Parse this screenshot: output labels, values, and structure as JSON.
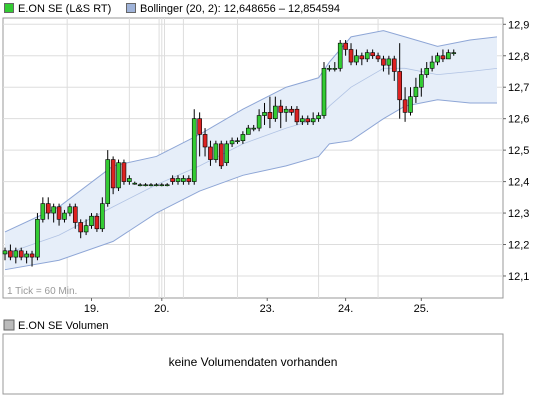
{
  "legend": {
    "instrument": "E.ON SE (L&S RT)",
    "instrument_color": "#33cc33",
    "bollinger": "Bollinger (20, 2): 12,648656 – 12,854594",
    "bollinger_color": "#9fb3d9"
  },
  "tick_note": "1 Tick = 60 Min.",
  "volume_panel": {
    "title": "E.ON SE Volumen",
    "title_color": "#bbbbbb",
    "message": "keine Volumendaten vorhanden"
  },
  "colors": {
    "up": "#33cc33",
    "down": "#dd2222",
    "band_fill": "#e6eef9",
    "band_line": "#8ea6d6",
    "grid": "#dddddd",
    "frame": "#999999"
  },
  "chart_data": {
    "type": "candlestick",
    "ylim": [
      12.03,
      12.92
    ],
    "yticks": [
      "12,1",
      "12,2",
      "12,3",
      "12,4",
      "12,5",
      "12,6",
      "12,7",
      "12,8",
      "12,9"
    ],
    "ytick_values": [
      12.1,
      12.2,
      12.3,
      12.4,
      12.5,
      12.6,
      12.7,
      12.8,
      12.9
    ],
    "xticks": [
      "19.",
      "20.",
      "23.",
      "24.",
      "25."
    ],
    "xtick_positions": [
      16,
      29,
      48.5,
      63,
      77
    ],
    "x_range": [
      0,
      91
    ],
    "day_separators": [
      11.5,
      23,
      28.5,
      29,
      29.5,
      33,
      43,
      58,
      69
    ],
    "candles": [
      [
        12.17,
        12.18,
        12.19,
        12.15
      ],
      [
        12.18,
        12.16,
        12.2,
        12.15
      ],
      [
        12.16,
        12.18,
        12.19,
        12.14
      ],
      [
        12.18,
        12.16,
        12.19,
        12.15
      ],
      [
        12.16,
        12.17,
        12.18,
        12.14
      ],
      [
        12.17,
        12.16,
        12.18,
        12.13
      ],
      [
        12.16,
        12.28,
        12.3,
        12.15
      ],
      [
        12.28,
        12.33,
        12.35,
        12.27
      ],
      [
        12.33,
        12.3,
        12.35,
        12.28
      ],
      [
        12.3,
        12.32,
        12.33,
        12.27
      ],
      [
        12.32,
        12.28,
        12.33,
        12.26
      ],
      [
        12.28,
        12.3,
        12.31,
        12.27
      ],
      [
        12.3,
        12.32,
        12.33,
        12.29
      ],
      [
        12.32,
        12.27,
        12.33,
        12.25
      ],
      [
        12.27,
        12.24,
        12.28,
        12.22
      ],
      [
        12.24,
        12.26,
        12.28,
        12.23
      ],
      [
        12.26,
        12.29,
        12.3,
        12.25
      ],
      [
        12.29,
        12.25,
        12.3,
        12.24
      ],
      [
        12.25,
        12.33,
        12.35,
        12.24
      ],
      [
        12.33,
        12.47,
        12.5,
        12.32
      ],
      [
        12.47,
        12.38,
        12.48,
        12.36
      ],
      [
        12.38,
        12.46,
        12.47,
        12.37
      ],
      [
        12.46,
        12.4,
        12.47,
        12.39
      ],
      [
        12.4,
        12.41,
        12.42,
        12.39
      ],
      [
        12.395,
        12.395,
        12.4,
        12.39
      ],
      [
        12.39,
        12.39,
        12.395,
        12.385
      ],
      [
        12.39,
        12.39,
        12.395,
        12.385
      ],
      [
        12.39,
        12.39,
        12.395,
        12.385
      ],
      [
        12.39,
        12.39,
        12.395,
        12.385
      ],
      [
        12.39,
        12.39,
        12.395,
        12.385
      ],
      [
        12.39,
        12.39,
        12.395,
        12.385
      ],
      [
        12.41,
        12.4,
        12.42,
        12.39
      ],
      [
        12.4,
        12.41,
        12.42,
        12.39
      ],
      [
        12.4,
        12.41,
        12.42,
        12.39
      ],
      [
        12.41,
        12.4,
        12.42,
        12.39
      ],
      [
        12.4,
        12.6,
        12.63,
        12.39
      ],
      [
        12.6,
        12.55,
        12.62,
        12.48
      ],
      [
        12.55,
        12.51,
        12.57,
        12.48
      ],
      [
        12.51,
        12.47,
        12.53,
        12.45
      ],
      [
        12.47,
        12.52,
        12.53,
        12.46
      ],
      [
        12.52,
        12.45,
        12.53,
        12.44
      ],
      [
        12.46,
        12.52,
        12.53,
        12.45
      ],
      [
        12.52,
        12.53,
        12.54,
        12.51
      ],
      [
        12.53,
        12.53,
        12.54,
        12.52
      ],
      [
        12.53,
        12.55,
        12.56,
        12.52
      ],
      [
        12.55,
        12.57,
        12.58,
        12.55
      ],
      [
        12.57,
        12.57,
        12.58,
        12.56
      ],
      [
        12.57,
        12.61,
        12.63,
        12.56
      ],
      [
        12.61,
        12.62,
        12.65,
        12.58
      ],
      [
        12.62,
        12.6,
        12.67,
        12.57
      ],
      [
        12.6,
        12.64,
        12.67,
        12.59
      ],
      [
        12.64,
        12.62,
        12.66,
        12.57
      ],
      [
        12.62,
        12.63,
        12.64,
        12.59
      ],
      [
        12.63,
        12.62,
        12.64,
        12.61
      ],
      [
        12.63,
        12.59,
        12.64,
        12.58
      ],
      [
        12.59,
        12.6,
        12.61,
        12.58
      ],
      [
        12.6,
        12.59,
        12.61,
        12.58
      ],
      [
        12.59,
        12.6,
        12.62,
        12.58
      ],
      [
        12.6,
        12.61,
        12.62,
        12.59
      ],
      [
        12.61,
        12.76,
        12.78,
        12.6
      ],
      [
        12.76,
        12.76,
        12.77,
        12.75
      ],
      [
        12.76,
        12.76,
        12.78,
        12.75
      ],
      [
        12.76,
        12.84,
        12.85,
        12.75
      ],
      [
        12.84,
        12.82,
        12.85,
        12.8
      ],
      [
        12.82,
        12.78,
        12.84,
        12.77
      ],
      [
        12.78,
        12.8,
        12.82,
        12.77
      ],
      [
        12.8,
        12.79,
        12.81,
        12.77
      ],
      [
        12.79,
        12.81,
        12.82,
        12.78
      ],
      [
        12.81,
        12.8,
        12.82,
        12.79
      ],
      [
        12.8,
        12.79,
        12.81,
        12.78
      ],
      [
        12.79,
        12.77,
        12.8,
        12.75
      ],
      [
        12.77,
        12.79,
        12.8,
        12.74
      ],
      [
        12.79,
        12.75,
        12.8,
        12.72
      ],
      [
        12.75,
        12.66,
        12.84,
        12.6
      ],
      [
        12.66,
        12.62,
        12.7,
        12.59
      ],
      [
        12.62,
        12.67,
        12.7,
        12.61
      ],
      [
        12.67,
        12.7,
        12.73,
        12.65
      ],
      [
        12.7,
        12.74,
        12.76,
        12.67
      ],
      [
        12.74,
        12.76,
        12.78,
        12.73
      ],
      [
        12.76,
        12.78,
        12.8,
        12.75
      ],
      [
        12.78,
        12.8,
        12.81,
        12.77
      ],
      [
        12.8,
        12.79,
        12.82,
        12.78
      ],
      [
        12.79,
        12.81,
        12.82,
        12.79
      ],
      [
        12.81,
        12.81,
        12.82,
        12.8
      ]
    ],
    "bollinger": {
      "x": [
        0,
        10,
        20,
        28,
        36,
        44,
        52,
        58,
        60,
        64,
        70,
        74,
        80,
        86,
        91
      ],
      "upper": [
        12.24,
        12.32,
        12.45,
        12.48,
        12.55,
        12.63,
        12.7,
        12.73,
        12.78,
        12.86,
        12.88,
        12.86,
        12.83,
        12.85,
        12.86
      ],
      "middle": [
        12.17,
        12.23,
        12.32,
        12.39,
        12.45,
        12.52,
        12.57,
        12.6,
        12.64,
        12.7,
        12.76,
        12.76,
        12.74,
        12.75,
        12.76
      ],
      "lower": [
        12.12,
        12.15,
        12.21,
        12.3,
        12.37,
        12.42,
        12.45,
        12.48,
        12.52,
        12.53,
        12.6,
        12.64,
        12.66,
        12.65,
        12.65
      ]
    }
  }
}
